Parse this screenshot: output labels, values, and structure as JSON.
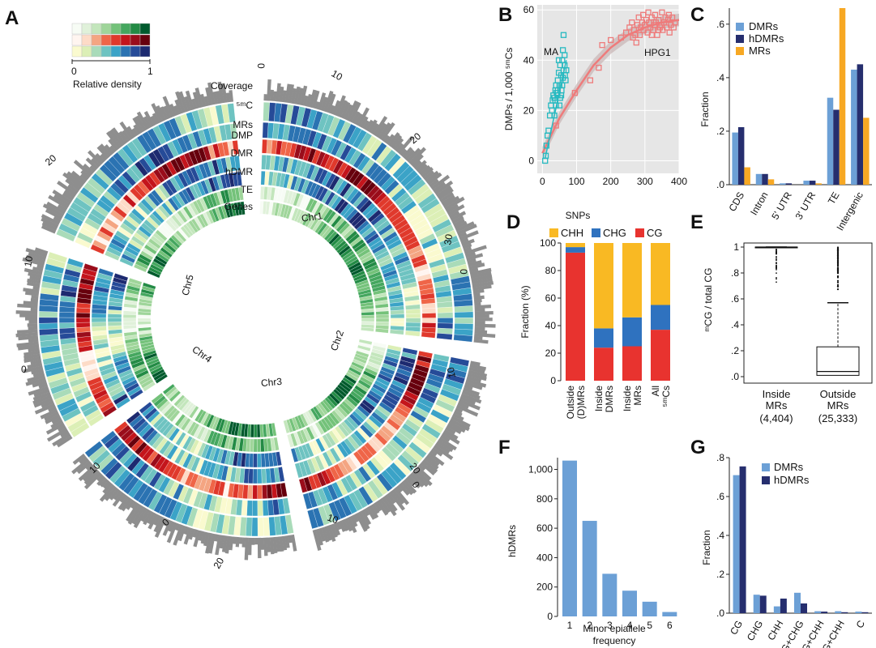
{
  "colors": {
    "green": [
      "#f7fcf5",
      "#e0f1da",
      "#c3e6bc",
      "#9fd59a",
      "#74c27a",
      "#45a75f",
      "#238b45",
      "#005a2d"
    ],
    "red": [
      "#fff5f0",
      "#fddbc7",
      "#f4a582",
      "#ef6548",
      "#e0392c",
      "#c4151c",
      "#9a0d1b",
      "#67000d"
    ],
    "blue": [
      "#fafacf",
      "#dcefb6",
      "#a9dbb9",
      "#6ec3c1",
      "#3ba3c7",
      "#2b73b2",
      "#264b98",
      "#1d2a70"
    ],
    "dmr": "#6ca0d6",
    "hdmr": "#262e6e",
    "mr": "#f7a823",
    "chh": "#f9b923",
    "chg": "#2f72bf",
    "cg": "#e8332f",
    "ma": "#26b9c0",
    "hpg1": "#ee7b7b",
    "ggbg": "#e6e6e6",
    "histogram": "#8e8e8e"
  },
  "panelA": {
    "letter": "A",
    "legend_min": "0",
    "legend_max": "1",
    "legend_title": "Relative density",
    "track_labels": [
      "Coverage",
      "⁵ᵐC",
      "MRs",
      "DMP",
      "DMR",
      "hDMR",
      "TE",
      "Genes"
    ],
    "chromosomes": [
      {
        "name": "Chr1",
        "ticks": [
          "0",
          "10",
          "20",
          "30"
        ]
      },
      {
        "name": "Chr2",
        "ticks": [
          "0",
          "10"
        ]
      },
      {
        "name": "Chr3",
        "ticks": [
          "20",
          "10",
          "0"
        ]
      },
      {
        "name": "Chr4",
        "ticks": [
          "20",
          "10",
          "0"
        ]
      },
      {
        "name": "Chr5",
        "ticks": [
          "0",
          "10",
          "20"
        ]
      }
    ]
  },
  "panelB": {
    "letter": "B",
    "chart_data": {
      "type": "scatter",
      "xlabel": "SNPs",
      "ylabel": "DMPs / 1,000 ⁵ᵐCs",
      "xlim": [
        -15,
        400
      ],
      "ylim": [
        -5,
        62
      ],
      "xticks": [
        "0",
        "100",
        "200",
        "300",
        "400"
      ],
      "yticks": [
        "0",
        "20",
        "40",
        "60"
      ],
      "grid": true,
      "series": [
        {
          "name": "MA",
          "color": "#26b9c0",
          "points": [
            [
              8,
              0
            ],
            [
              10,
              2
            ],
            [
              12,
              6
            ],
            [
              15,
              10
            ],
            [
              18,
              12
            ],
            [
              22,
              18
            ],
            [
              25,
              22
            ],
            [
              28,
              20
            ],
            [
              30,
              24
            ],
            [
              32,
              26
            ],
            [
              35,
              25
            ],
            [
              38,
              28
            ],
            [
              40,
              30
            ],
            [
              42,
              27
            ],
            [
              45,
              32
            ],
            [
              48,
              35
            ],
            [
              50,
              30
            ],
            [
              52,
              38
            ],
            [
              55,
              34
            ],
            [
              58,
              40
            ],
            [
              60,
              33
            ],
            [
              62,
              36
            ],
            [
              65,
              42
            ],
            [
              55,
              26
            ],
            [
              50,
              22
            ],
            [
              45,
              28
            ],
            [
              40,
              22
            ],
            [
              35,
              18
            ],
            [
              60,
              44
            ],
            [
              65,
              38
            ],
            [
              68,
              32
            ],
            [
              58,
              30
            ],
            [
              52,
              25
            ],
            [
              70,
              36
            ],
            [
              48,
              40
            ],
            [
              44,
              26
            ],
            [
              38,
              24
            ],
            [
              62,
              50
            ],
            [
              66,
              34
            ],
            [
              56,
              28
            ]
          ]
        },
        {
          "name": "HPG1",
          "color": "#ee7b7b",
          "points": [
            [
              40,
              14
            ],
            [
              95,
              27
            ],
            [
              140,
              32
            ],
            [
              165,
              37
            ],
            [
              175,
              46
            ],
            [
              200,
              48
            ],
            [
              230,
              49
            ],
            [
              245,
              51
            ],
            [
              255,
              53
            ],
            [
              262,
              55
            ],
            [
              268,
              52
            ],
            [
              272,
              50
            ],
            [
              278,
              54
            ],
            [
              282,
              57
            ],
            [
              288,
              53
            ],
            [
              292,
              55
            ],
            [
              296,
              52
            ],
            [
              300,
              54
            ],
            [
              304,
              56
            ],
            [
              308,
              51
            ],
            [
              312,
              55
            ],
            [
              316,
              53
            ],
            [
              320,
              57
            ],
            [
              324,
              52
            ],
            [
              328,
              54
            ],
            [
              332,
              55
            ],
            [
              336,
              50
            ],
            [
              340,
              56
            ],
            [
              344,
              53
            ],
            [
              348,
              54
            ],
            [
              352,
              52
            ],
            [
              356,
              55
            ],
            [
              360,
              57
            ],
            [
              364,
              53
            ],
            [
              368,
              56
            ],
            [
              372,
              51
            ],
            [
              376,
              54
            ],
            [
              380,
              57
            ],
            [
              384,
              53
            ],
            [
              388,
              55
            ],
            [
              285,
              50
            ],
            [
              295,
              58
            ],
            [
              310,
              59
            ],
            [
              330,
              58
            ],
            [
              350,
              59
            ],
            [
              370,
              58
            ],
            [
              265,
              49
            ],
            [
              275,
              47
            ],
            [
              320,
              50
            ],
            [
              340,
              52
            ]
          ]
        }
      ],
      "fit": {
        "color": "#ee7b7b",
        "x": [
          0,
          50,
          100,
          150,
          200,
          250,
          300,
          350,
          400
        ],
        "y": [
          3,
          17,
          28,
          38,
          45,
          50,
          53,
          55,
          56
        ]
      },
      "annotations": [
        "MA",
        "HPG1"
      ]
    }
  },
  "panelC": {
    "letter": "C",
    "chart_data": {
      "type": "bar",
      "categories": [
        "CDS",
        "Intron",
        "5' UTR",
        "3' UTR",
        "TE",
        "Intergenic"
      ],
      "series": [
        {
          "name": "DMRs",
          "color": "#6ca0d6",
          "values": [
            0.195,
            0.04,
            0.005,
            0.015,
            0.325,
            0.43
          ]
        },
        {
          "name": "hDMRs",
          "color": "#262e6e",
          "values": [
            0.215,
            0.04,
            0.005,
            0.015,
            0.28,
            0.45
          ]
        },
        {
          "name": "MRs",
          "color": "#f7a823",
          "values": [
            0.065,
            0.02,
            0.0,
            0.005,
            0.66,
            0.25
          ]
        }
      ],
      "ylabel": "Fraction",
      "ylim": [
        0,
        0.66
      ],
      "yticks": [
        ".0",
        ".2",
        ".4",
        ".6"
      ],
      "legend": "top-left"
    }
  },
  "panelD": {
    "letter": "D",
    "chart_data": {
      "type": "bar",
      "stacked": true,
      "categories": [
        "Outside (D)MRs",
        "Inside DMRs",
        "Inside MRs",
        "All ⁵ᵐCs"
      ],
      "series": [
        {
          "name": "CG",
          "color": "#e8332f",
          "values": [
            93,
            24,
            25,
            37
          ]
        },
        {
          "name": "CHG",
          "color": "#2f72bf",
          "values": [
            4,
            14,
            21,
            18
          ]
        },
        {
          "name": "CHH",
          "color": "#f9b923",
          "values": [
            3,
            62,
            54,
            45
          ]
        }
      ],
      "ylabel": "Fraction (%)",
      "ylim": [
        0,
        100
      ],
      "yticks": [
        "0",
        "20",
        "40",
        "60",
        "80",
        "100"
      ],
      "legend": "top",
      "category_lines": [
        [
          "Outside",
          "(D)MRs"
        ],
        [
          "Inside",
          "DMRs"
        ],
        [
          "Inside",
          "MRs"
        ],
        [
          "All",
          "⁵ᵐCs"
        ]
      ]
    }
  },
  "panelE": {
    "letter": "E",
    "chart_data": {
      "type": "box",
      "categories": [
        "Inside MRs",
        "Outside MRs"
      ],
      "category_lines": [
        [
          "Inside",
          "MRs"
        ],
        [
          "Outside",
          "MRs"
        ]
      ],
      "counts": [
        "(4,404)",
        "(25,333)"
      ],
      "ylabel": "ᵐCG / total CG",
      "ylim": [
        0,
        1
      ],
      "yticks": [
        ".0",
        ".2",
        ".4",
        ".6",
        ".8",
        "1"
      ],
      "boxes": [
        {
          "min": 0.67,
          "q1": 1.0,
          "median": 1.0,
          "q3": 1.0,
          "max": 1.0
        },
        {
          "min": 0.0,
          "q1": 0.01,
          "median": 0.04,
          "q3": 0.23,
          "max": 0.57
        }
      ]
    }
  },
  "panelF": {
    "letter": "F",
    "chart_data": {
      "type": "bar",
      "categories": [
        "1",
        "2",
        "3",
        "4",
        "5",
        "6"
      ],
      "values": [
        1060,
        650,
        290,
        175,
        100,
        30
      ],
      "color": "#6ca0d6",
      "xlabel_lines": [
        "Minor epiallele",
        "frequency"
      ],
      "ylabel": "hDMRs",
      "ylim": [
        0,
        1080
      ],
      "yticks": [
        "0",
        "200",
        "400",
        "600",
        "800",
        "1,000"
      ]
    }
  },
  "panelG": {
    "letter": "G",
    "chart_data": {
      "type": "bar",
      "categories": [
        "CG",
        "CHG",
        "CHH",
        "CG+CHG",
        "CHG+CHH",
        "CG+CHH",
        "C"
      ],
      "series": [
        {
          "name": "DMRs",
          "color": "#6ca0d6",
          "values": [
            0.71,
            0.095,
            0.035,
            0.105,
            0.01,
            0.01,
            0.008
          ]
        },
        {
          "name": "hDMRs",
          "color": "#262e6e",
          "values": [
            0.755,
            0.09,
            0.075,
            0.05,
            0.008,
            0.005,
            0.005
          ]
        }
      ],
      "ylabel": "Fraction",
      "ylim": [
        0,
        0.8
      ],
      "yticks": [
        ".0",
        ".2",
        ".4",
        ".6",
        ".8"
      ],
      "legend": "top-left"
    }
  }
}
